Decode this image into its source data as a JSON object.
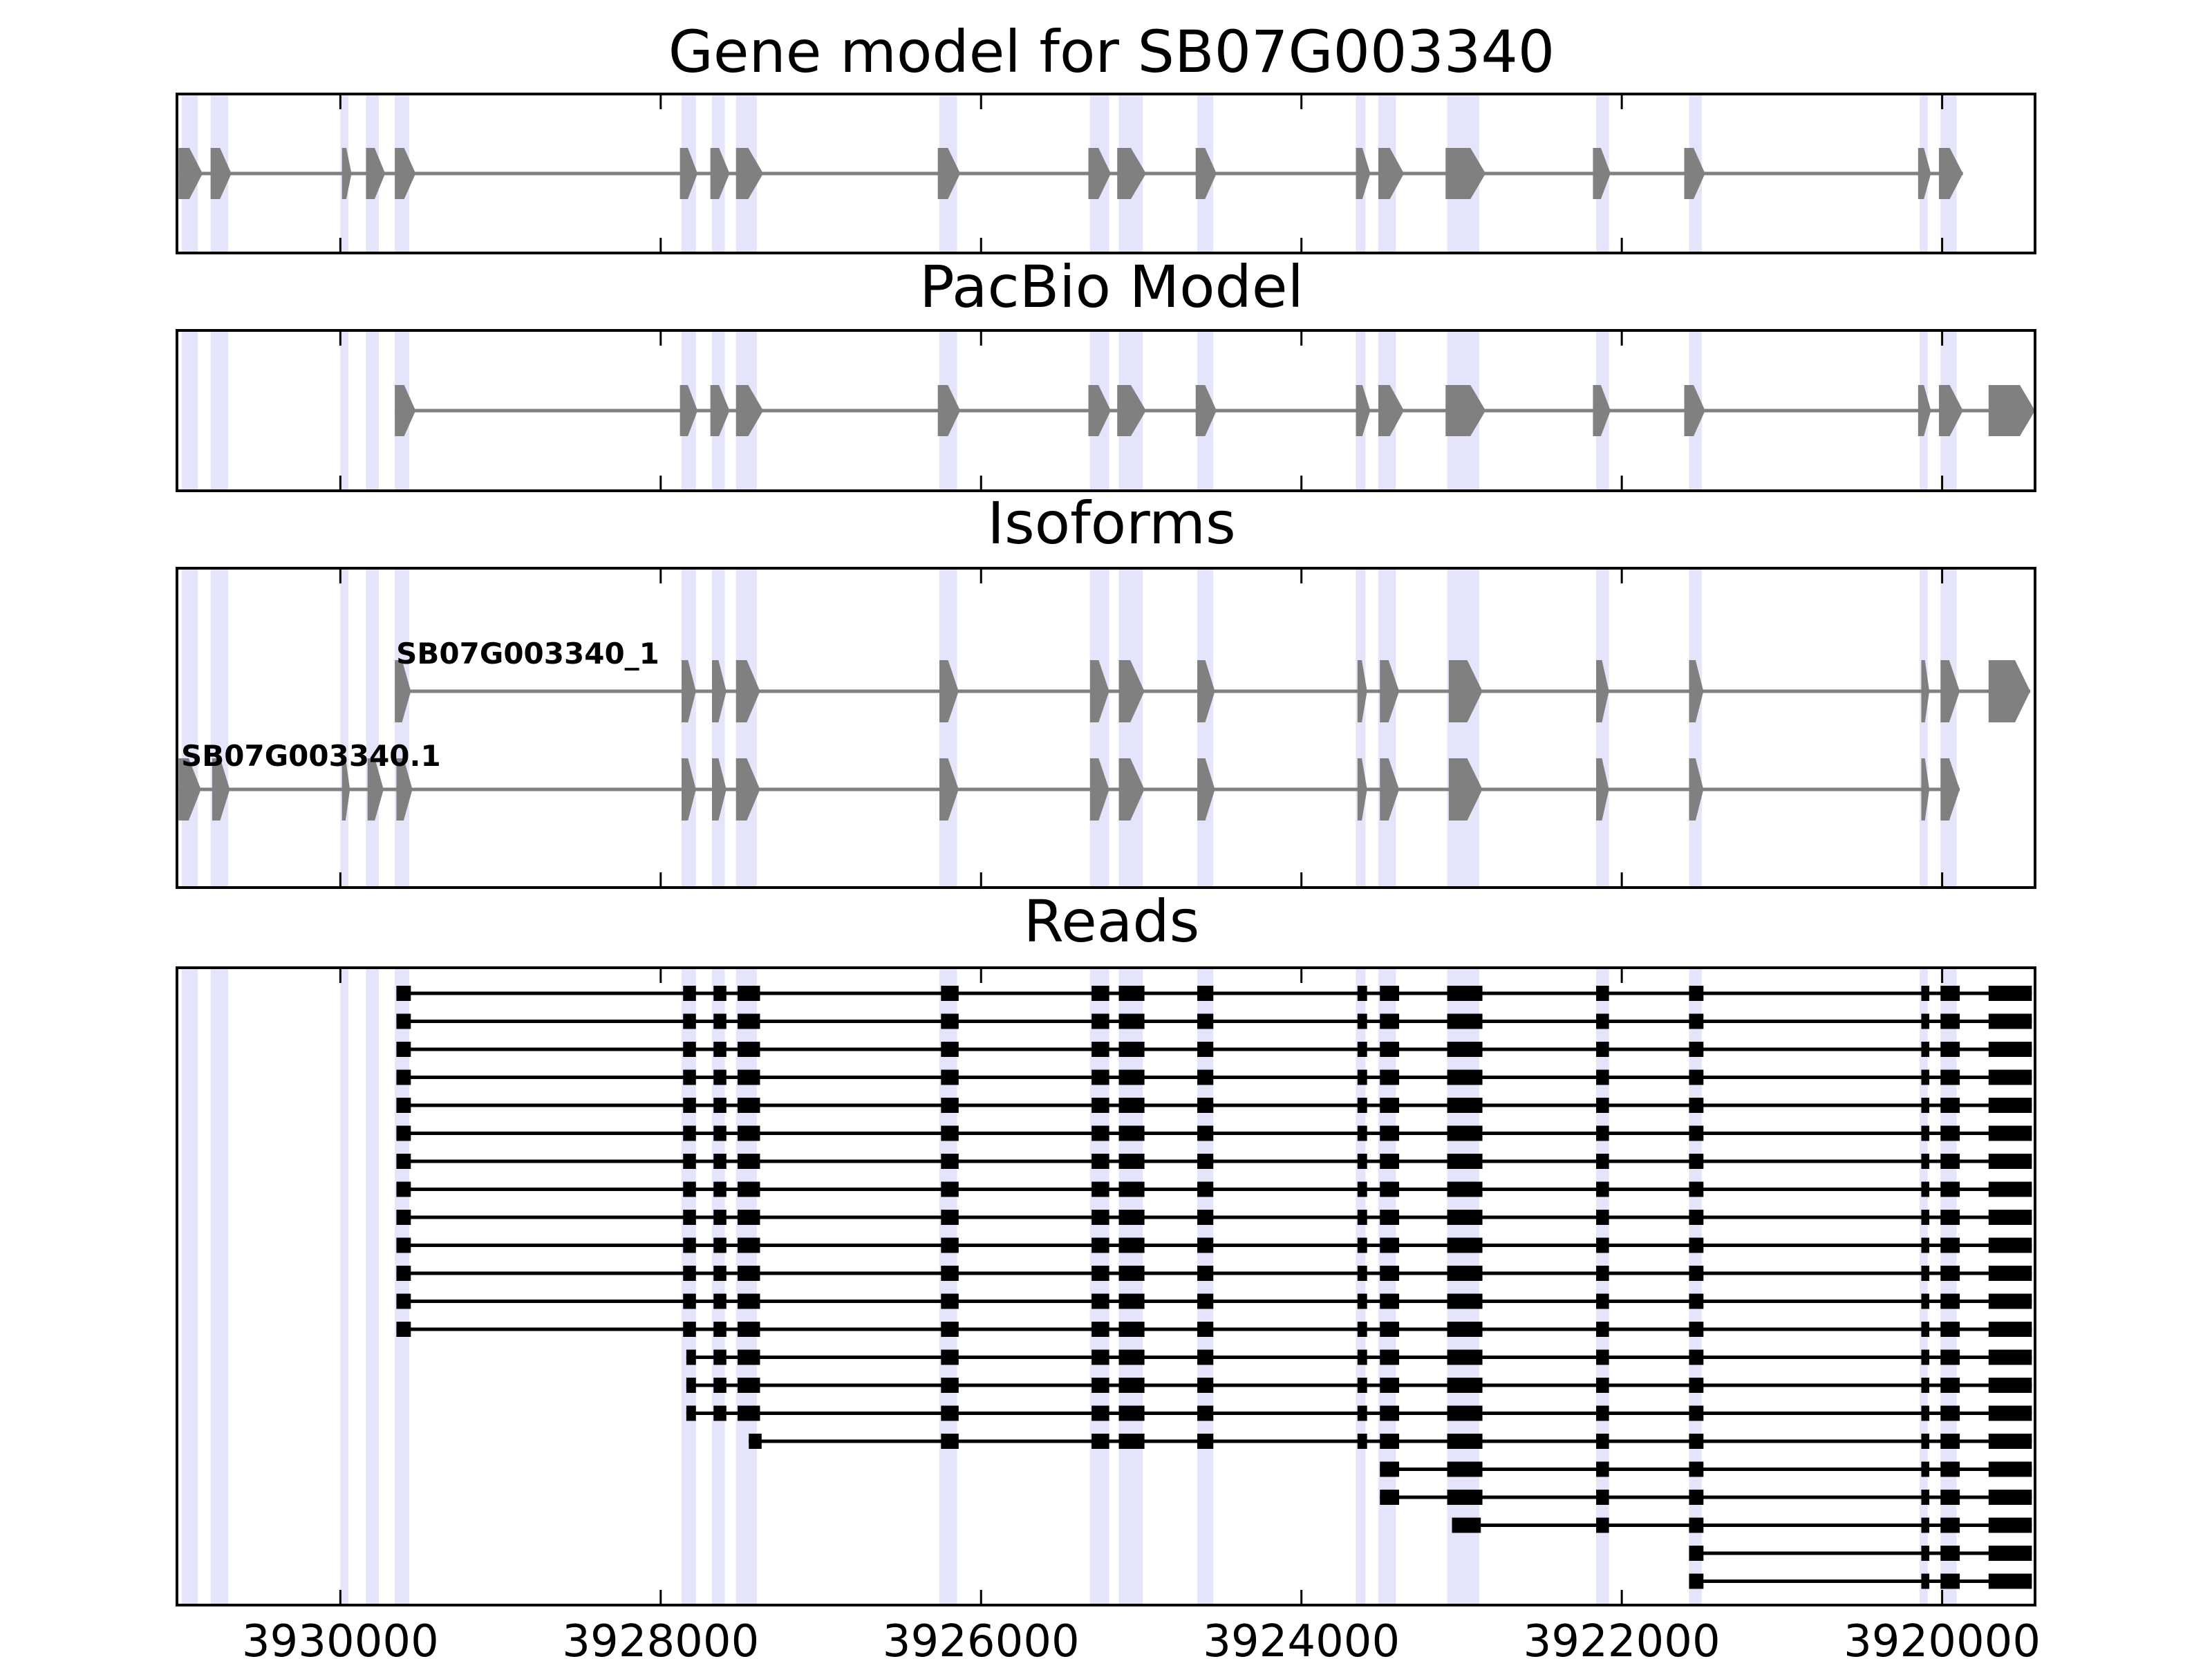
{
  "chart_data": {
    "type": "gene-model-tracks",
    "title": "Gene model for SB07G003340",
    "xlim": [
      3931020,
      3919420
    ],
    "xticks": [
      3930000,
      3928000,
      3926000,
      3924000,
      3922000,
      3920000
    ],
    "xtick_labels": [
      "3930000",
      "3928000",
      "3926000",
      "3924000",
      "3922000",
      "3920000"
    ],
    "colors": {
      "exon": "#808080",
      "intron": "#808080",
      "read": "#000000",
      "highlight": "#e4e4fa",
      "frame": "#000000"
    },
    "highlights": [
      [
        3930990,
        3930890
      ],
      [
        3930810,
        3930700
      ],
      [
        3930000,
        3929950
      ],
      [
        3929840,
        3929760
      ],
      [
        3929660,
        3929570
      ],
      [
        3927870,
        3927780
      ],
      [
        3927680,
        3927600
      ],
      [
        3927530,
        3927400
      ],
      [
        3926260,
        3926150
      ],
      [
        3925320,
        3925200
      ],
      [
        3925140,
        3924990
      ],
      [
        3924650,
        3924550
      ],
      [
        3923660,
        3923600
      ],
      [
        3923520,
        3923410
      ],
      [
        3923090,
        3922890
      ],
      [
        3922160,
        3922080
      ],
      [
        3921580,
        3921500
      ],
      [
        3920140,
        3920090
      ],
      [
        3920010,
        3919910
      ]
    ],
    "tracks": [
      {
        "title": "Gene model for SB07G003340",
        "models": [
          {
            "label": "",
            "exons": [
              [
                3931010,
                3930860
              ],
              [
                3930810,
                3930680
              ],
              [
                3929990,
                3929930
              ],
              [
                3929840,
                3929720
              ],
              [
                3929660,
                3929530
              ],
              [
                3927880,
                3927770
              ],
              [
                3927690,
                3927570
              ],
              [
                3927530,
                3927360
              ],
              [
                3926270,
                3926130
              ],
              [
                3925330,
                3925190
              ],
              [
                3925150,
                3924970
              ],
              [
                3924660,
                3924530
              ],
              [
                3923660,
                3923570
              ],
              [
                3923520,
                3923360
              ],
              [
                3923100,
                3922850
              ],
              [
                3922180,
                3922070
              ],
              [
                3921610,
                3921480
              ],
              [
                3920150,
                3920070
              ],
              [
                3920020,
                3919870
              ]
            ]
          }
        ]
      },
      {
        "title": "PacBio Model",
        "models": [
          {
            "label": "",
            "exons": [
              [
                3929660,
                3929530
              ],
              [
                3927880,
                3927770
              ],
              [
                3927690,
                3927570
              ],
              [
                3927530,
                3927360
              ],
              [
                3926270,
                3926130
              ],
              [
                3925330,
                3925190
              ],
              [
                3925150,
                3924970
              ],
              [
                3924660,
                3924530
              ],
              [
                3923660,
                3923570
              ],
              [
                3923520,
                3923360
              ],
              [
                3923100,
                3922850
              ],
              [
                3922180,
                3922070
              ],
              [
                3921610,
                3921480
              ],
              [
                3920150,
                3920070
              ],
              [
                3920020,
                3919870
              ],
              [
                3919710,
                3919420
              ]
            ]
          }
        ]
      },
      {
        "title": "Isoforms",
        "models": [
          {
            "label": "SB07G003340_1",
            "exons": [
              [
                3929660,
                3929560
              ],
              [
                3927870,
                3927780
              ],
              [
                3927680,
                3927590
              ],
              [
                3927530,
                3927380
              ],
              [
                3926260,
                3926140
              ],
              [
                3925320,
                3925200
              ],
              [
                3925140,
                3924980
              ],
              [
                3924650,
                3924540
              ],
              [
                3923650,
                3923590
              ],
              [
                3923510,
                3923390
              ],
              [
                3923080,
                3922870
              ],
              [
                3922160,
                3922080
              ],
              [
                3921580,
                3921490
              ],
              [
                3920130,
                3920080
              ],
              [
                3920010,
                3919890
              ],
              [
                3919710,
                3919450
              ]
            ]
          },
          {
            "label": "SB07G003340.1",
            "exons": [
              [
                3931010,
                3930870
              ],
              [
                3930800,
                3930690
              ],
              [
                3929990,
                3929940
              ],
              [
                3929830,
                3929730
              ],
              [
                3929650,
                3929550
              ],
              [
                3927870,
                3927780
              ],
              [
                3927680,
                3927590
              ],
              [
                3927530,
                3927380
              ],
              [
                3926260,
                3926140
              ],
              [
                3925320,
                3925200
              ],
              [
                3925140,
                3924980
              ],
              [
                3924650,
                3924540
              ],
              [
                3923650,
                3923590
              ],
              [
                3923510,
                3923390
              ],
              [
                3923080,
                3922870
              ],
              [
                3922160,
                3922080
              ],
              [
                3921580,
                3921490
              ],
              [
                3920130,
                3920080
              ],
              [
                3920010,
                3919890
              ]
            ]
          }
        ]
      },
      {
        "title": "Reads",
        "read_count": 22,
        "exon_groups": {
          "A": [
            [
              3929650,
              3929560
            ],
            [
              3927860,
              3927780
            ],
            [
              3927670,
              3927590
            ],
            [
              3927520,
              3927380
            ],
            [
              3926250,
              3926140
            ],
            [
              3925310,
              3925200
            ],
            [
              3925140,
              3924980
            ],
            [
              3924650,
              3924550
            ],
            [
              3923650,
              3923590
            ],
            [
              3923510,
              3923390
            ],
            [
              3923090,
              3922870
            ],
            [
              3922160,
              3922080
            ],
            [
              3921580,
              3921490
            ],
            [
              3920130,
              3920080
            ],
            [
              3920010,
              3919890
            ],
            [
              3919710,
              3919440
            ]
          ],
          "B": [
            [
              3927840,
              3927780
            ],
            [
              3927670,
              3927590
            ],
            [
              3927520,
              3927380
            ],
            [
              3926250,
              3926140
            ],
            [
              3925310,
              3925200
            ],
            [
              3925140,
              3924980
            ],
            [
              3924650,
              3924550
            ],
            [
              3923650,
              3923590
            ],
            [
              3923510,
              3923390
            ],
            [
              3923090,
              3922870
            ],
            [
              3922160,
              3922080
            ],
            [
              3921580,
              3921490
            ],
            [
              3920130,
              3920080
            ],
            [
              3920010,
              3919890
            ],
            [
              3919710,
              3919440
            ]
          ],
          "C": [
            [
              3927450,
              3927370
            ],
            [
              3926250,
              3926140
            ],
            [
              3925310,
              3925200
            ],
            [
              3925140,
              3924980
            ],
            [
              3924650,
              3924550
            ],
            [
              3923650,
              3923590
            ],
            [
              3923510,
              3923390
            ],
            [
              3923090,
              3922870
            ],
            [
              3922160,
              3922080
            ],
            [
              3921580,
              3921490
            ],
            [
              3920130,
              3920080
            ],
            [
              3920010,
              3919890
            ],
            [
              3919710,
              3919440
            ]
          ],
          "D": [
            [
              3923510,
              3923390
            ],
            [
              3923090,
              3922870
            ],
            [
              3922160,
              3922080
            ],
            [
              3921580,
              3921490
            ],
            [
              3920130,
              3920080
            ],
            [
              3920010,
              3919890
            ],
            [
              3919710,
              3919440
            ]
          ],
          "E": [
            [
              3923060,
              3922880
            ],
            [
              3922160,
              3922080
            ],
            [
              3921580,
              3921490
            ],
            [
              3920130,
              3920080
            ],
            [
              3920010,
              3919890
            ],
            [
              3919710,
              3919440
            ]
          ],
          "F": [
            [
              3921580,
              3921490
            ],
            [
              3920130,
              3920080
            ],
            [
              3920010,
              3919890
            ],
            [
              3919710,
              3919440
            ]
          ]
        },
        "read_groups": [
          "A",
          "A",
          "A",
          "A",
          "A",
          "A",
          "A",
          "A",
          "A",
          "A",
          "A",
          "A",
          "A",
          "B",
          "B",
          "B",
          "C",
          "D",
          "D",
          "E",
          "F",
          "F"
        ]
      }
    ]
  }
}
